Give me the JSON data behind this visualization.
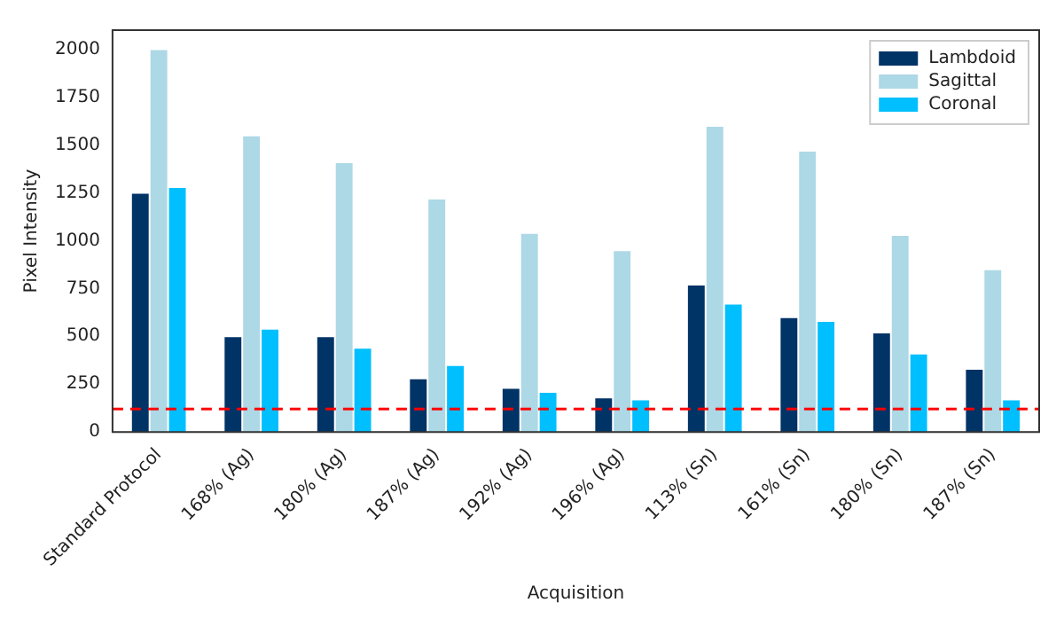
{
  "chart_data": {
    "type": "bar",
    "xlabel": "Acquisition",
    "ylabel": "Pixel Intensity",
    "categories": [
      "Standard Protocol",
      "168% (Ag)",
      "180% (Ag)",
      "187% (Ag)",
      "192% (Ag)",
      "196% (Ag)",
      "113% (Sn)",
      "161% (Sn)",
      "180% (Sn)",
      "187% (Sn)"
    ],
    "series": [
      {
        "name": "Lambdoid",
        "color": "#003366",
        "values": [
          1250,
          500,
          500,
          280,
          230,
          180,
          770,
          600,
          520,
          330
        ]
      },
      {
        "name": "Sagittal",
        "color": "#add8e6",
        "values": [
          2000,
          1550,
          1410,
          1220,
          1040,
          950,
          1600,
          1470,
          1030,
          850
        ]
      },
      {
        "name": "Coronal",
        "color": "#00bfff",
        "values": [
          1280,
          540,
          440,
          350,
          210,
          170,
          670,
          580,
          410,
          170
        ]
      }
    ],
    "ylim": [
      0,
      2100
    ],
    "yticks": [
      0,
      250,
      500,
      750,
      1000,
      1250,
      1500,
      1750,
      2000
    ],
    "ref_lines": [
      {
        "axis": "y",
        "value": 120,
        "color": "#ff0000",
        "line_style": "dashed"
      }
    ],
    "legend": "top right",
    "grid": false
  }
}
